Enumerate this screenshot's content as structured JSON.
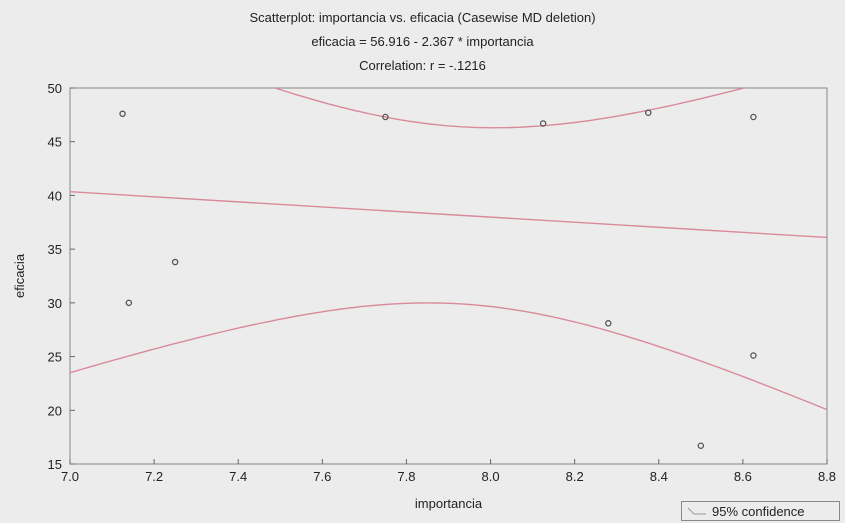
{
  "chart_data": {
    "type": "scatter",
    "title": "Scatterplot: importancia vs. eficacia (Casewise MD deletion)",
    "subtitle": "eficacia = 56.916 - 2.367  * importancia",
    "annotation": "Correlation: r = -.1216",
    "xlabel": "importancia",
    "ylabel": "eficacia",
    "xlim": [
      7.0,
      8.8
    ],
    "ylim": [
      15,
      50
    ],
    "xticks": [
      "7.0",
      "7.2",
      "7.4",
      "7.6",
      "7.8",
      "8.0",
      "8.2",
      "8.4",
      "8.6",
      "8.8"
    ],
    "yticks": [
      "15",
      "20",
      "25",
      "30",
      "35",
      "40",
      "45",
      "50"
    ],
    "grid": false,
    "points": [
      {
        "x": 7.125,
        "y": 47.6
      },
      {
        "x": 7.14,
        "y": 30.0
      },
      {
        "x": 7.25,
        "y": 33.8
      },
      {
        "x": 7.75,
        "y": 47.3
      },
      {
        "x": 8.125,
        "y": 46.7
      },
      {
        "x": 8.28,
        "y": 28.1
      },
      {
        "x": 8.375,
        "y": 47.7
      },
      {
        "x": 8.5,
        "y": 16.7
      },
      {
        "x": 8.625,
        "y": 47.3
      },
      {
        "x": 8.625,
        "y": 25.1
      }
    ],
    "regression": {
      "intercept": 56.916,
      "slope": -2.367
    },
    "confidence_band": {
      "label": "95% confidence",
      "center_x": 7.93,
      "lower_at_center": 29.9,
      "lower_at_7_0": 23.5
    },
    "colors": {
      "line": "#d98a9a",
      "point": "#555555",
      "frame": "#888888"
    },
    "legend": {
      "label": "95% confidence",
      "position": "bottom-right"
    }
  }
}
